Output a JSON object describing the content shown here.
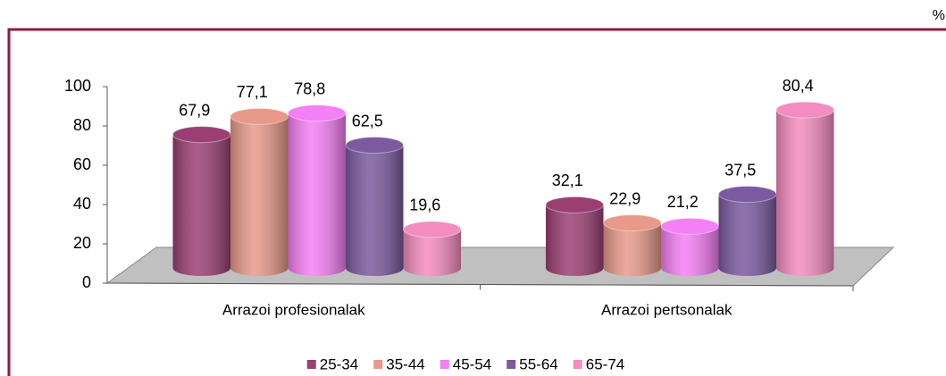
{
  "chart_data": {
    "type": "bar3d",
    "unit": "%",
    "categories": [
      "Arrazoi profesionalak",
      "Arrazoi pertsonalak"
    ],
    "series": [
      {
        "name": "25-34",
        "color": "#9b3f73",
        "values": [
          67.9,
          32.1
        ],
        "value_labels": [
          "67,9",
          "32,1"
        ]
      },
      {
        "name": "35-44",
        "color": "#e8998a",
        "values": [
          77.1,
          22.9
        ],
        "value_labels": [
          "77,1",
          "22,9"
        ]
      },
      {
        "name": "45-54",
        "color": "#f57ff5",
        "values": [
          78.8,
          21.2
        ],
        "value_labels": [
          "78,8",
          "21,2"
        ]
      },
      {
        "name": "55-64",
        "color": "#7b5a9f",
        "values": [
          62.5,
          37.5
        ],
        "value_labels": [
          "62,5",
          "37,5"
        ]
      },
      {
        "name": "65-74",
        "color": "#f48cbf",
        "values": [
          19.6,
          80.4
        ],
        "value_labels": [
          "19,6",
          "80,4"
        ]
      }
    ],
    "ylim": [
      0,
      100
    ],
    "yticks": [
      0,
      20,
      40,
      60,
      80,
      100
    ],
    "legend": "bottom"
  }
}
